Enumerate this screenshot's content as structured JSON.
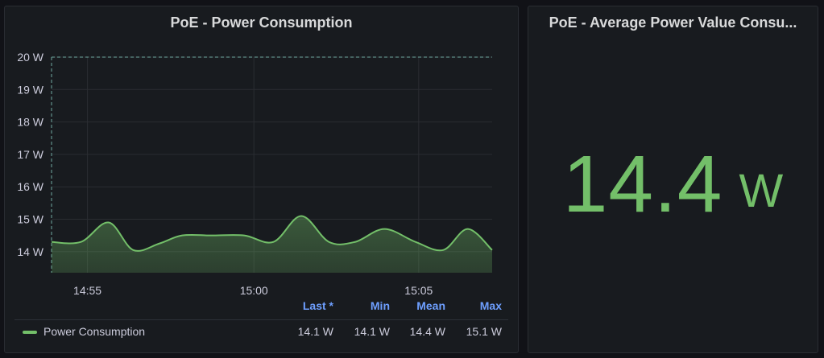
{
  "panels": {
    "left": {
      "title": "PoE - Power Consumption"
    },
    "right": {
      "title": "PoE - Average Power Value Consu...",
      "value": "14.4",
      "unit": "W"
    }
  },
  "legend": {
    "headers": {
      "last": "Last *",
      "min": "Min",
      "mean": "Mean",
      "max": "Max"
    },
    "series_name": "Power Consumption",
    "values": {
      "last": "14.1 W",
      "min": "14.1 W",
      "mean": "14.4 W",
      "max": "15.1 W"
    }
  },
  "colors": {
    "series": "#73bf69",
    "threshold": "#6fa8a0",
    "legend_header": "#6e9fff",
    "background": "#181b1f"
  },
  "chart_data": {
    "type": "area",
    "title": "PoE - Power Consumption",
    "xlabel": "",
    "ylabel": "",
    "ylim": [
      13.35,
      20
    ],
    "y_ticks": [
      {
        "v": 20,
        "label": "20 W"
      },
      {
        "v": 19,
        "label": "19 W"
      },
      {
        "v": 18,
        "label": "18 W"
      },
      {
        "v": 17,
        "label": "17 W"
      },
      {
        "v": 16,
        "label": "16 W"
      },
      {
        "v": 15,
        "label": "15 W"
      },
      {
        "v": 14,
        "label": "14 W"
      }
    ],
    "x_ticks": [
      {
        "t": 54.9,
        "label": "14:55"
      },
      {
        "t": 60.0,
        "label": "15:00"
      },
      {
        "t": 65.05,
        "label": "15:05"
      }
    ],
    "xlim": [
      53.8,
      67.3
    ],
    "threshold": {
      "value": 20,
      "start_t": 53.8
    },
    "grid": true,
    "legend_position": "bottom",
    "series": [
      {
        "name": "Power Consumption",
        "x": [
          53.8,
          54.7,
          55.55,
          56.3,
          57.1,
          57.8,
          58.7,
          59.7,
          60.6,
          61.45,
          62.3,
          63.1,
          64.0,
          64.95,
          65.8,
          66.55,
          67.3
        ],
        "values": [
          14.3,
          14.3,
          14.9,
          14.05,
          14.25,
          14.5,
          14.5,
          14.5,
          14.3,
          15.1,
          14.3,
          14.3,
          14.7,
          14.3,
          14.05,
          14.7,
          14.05
        ]
      }
    ]
  }
}
